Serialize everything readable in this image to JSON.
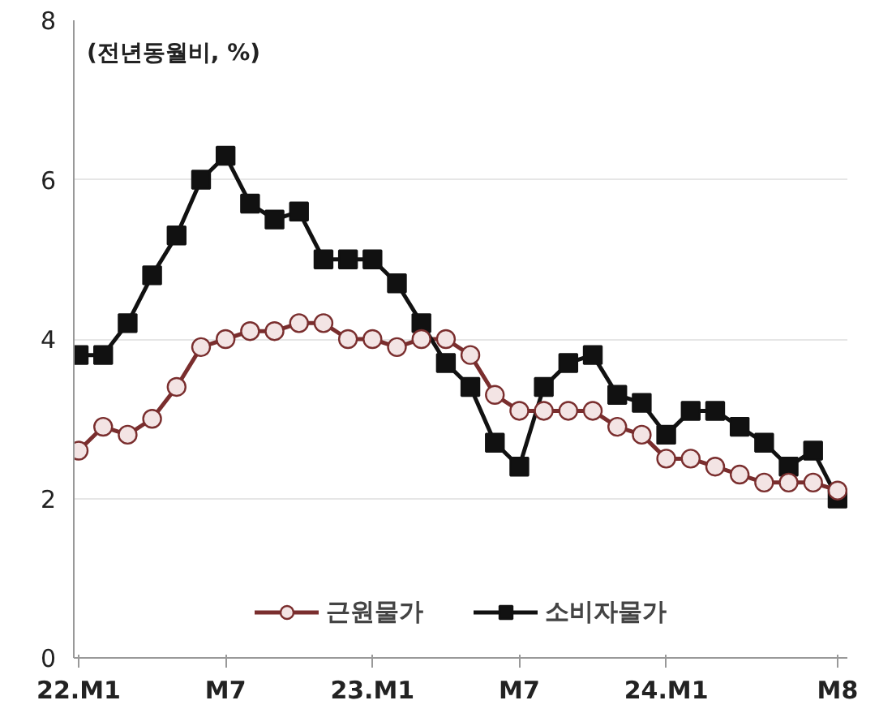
{
  "chart_data": {
    "type": "line",
    "annotations": [
      "(전년동월비, %)"
    ],
    "categories": [
      "22.M1",
      null,
      null,
      null,
      null,
      null,
      "M7",
      null,
      null,
      null,
      null,
      null,
      "23.M1",
      null,
      null,
      null,
      null,
      null,
      "M7",
      null,
      null,
      null,
      null,
      null,
      "24.M1",
      null,
      null,
      null,
      null,
      null,
      null,
      "M8"
    ],
    "series": [
      {
        "name": "근원물가",
        "color": "#7a2e2e",
        "marker": "circle",
        "values": [
          2.6,
          2.9,
          2.8,
          3.0,
          3.4,
          3.9,
          4.0,
          4.1,
          4.1,
          4.2,
          4.2,
          4.0,
          4.0,
          3.9,
          4.0,
          4.0,
          3.8,
          3.3,
          3.1,
          3.1,
          3.1,
          3.1,
          2.9,
          2.8,
          2.5,
          2.5,
          2.4,
          2.3,
          2.2,
          2.2,
          2.2,
          2.1
        ]
      },
      {
        "name": "소비자물가",
        "color": "#111111",
        "marker": "square",
        "values": [
          3.8,
          3.8,
          4.2,
          4.8,
          5.3,
          6.0,
          6.3,
          5.7,
          5.5,
          5.6,
          5.0,
          5.0,
          5.0,
          4.7,
          4.2,
          3.7,
          3.4,
          2.7,
          2.4,
          3.4,
          3.7,
          3.8,
          3.3,
          3.2,
          2.8,
          3.1,
          3.1,
          2.9,
          2.7,
          2.4,
          2.6,
          2.0
        ]
      }
    ],
    "ylim": [
      0,
      8
    ],
    "yticks": [
      0,
      2,
      4,
      6,
      8
    ],
    "grid": "y",
    "legend": "bottom"
  }
}
